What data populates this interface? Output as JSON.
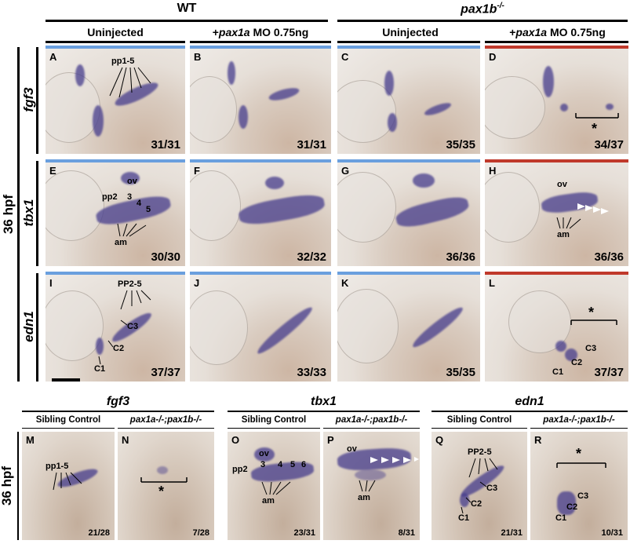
{
  "headers": {
    "wt": "WT",
    "pax1b": "pax1b",
    "pax1b_sup": "-/-",
    "uninjected_1": "Uninjected",
    "injected_1": "+pax1a MO 0.75ng",
    "uninjected_2": "Uninjected",
    "injected_2": "+pax1a MO 0.75ng",
    "injected_prefix": "+",
    "injected_gene": "pax1a",
    "injected_dose": " MO 0.75ng"
  },
  "row_labels": {
    "r1": "fgf3",
    "r2": "tbx1",
    "r3": "edn1",
    "hpf_top": "36 hpf",
    "hpf_bottom": "36 hpf"
  },
  "bottom_headers": {
    "g1": "fgf3",
    "g2": "tbx1",
    "g3": "edn1",
    "sibling": "Sibling Control",
    "double_mutant": "pax1a-/-;pax1b-/-"
  },
  "panels": [
    {
      "letter": "A",
      "count": "31/31",
      "bar": "blue"
    },
    {
      "letter": "B",
      "count": "31/31",
      "bar": "blue"
    },
    {
      "letter": "C",
      "count": "35/35",
      "bar": "blue"
    },
    {
      "letter": "D",
      "count": "34/37",
      "bar": "red"
    },
    {
      "letter": "E",
      "count": "30/30",
      "bar": "blue"
    },
    {
      "letter": "F",
      "count": "32/32",
      "bar": "blue"
    },
    {
      "letter": "G",
      "count": "36/36",
      "bar": "blue"
    },
    {
      "letter": "H",
      "count": "36/36",
      "bar": "red"
    },
    {
      "letter": "I",
      "count": "37/37",
      "bar": "blue"
    },
    {
      "letter": "J",
      "count": "33/33",
      "bar": "blue"
    },
    {
      "letter": "K",
      "count": "35/35",
      "bar": "blue"
    },
    {
      "letter": "L",
      "count": "37/37",
      "bar": "red"
    },
    {
      "letter": "M",
      "count": "21/28"
    },
    {
      "letter": "N",
      "count": "7/28"
    },
    {
      "letter": "O",
      "count": "23/31"
    },
    {
      "letter": "P",
      "count": "8/31"
    },
    {
      "letter": "Q",
      "count": "21/31"
    },
    {
      "letter": "R",
      "count": "10/31"
    }
  ],
  "annotations": {
    "pp1_5": "pp1-5",
    "ov": "ov",
    "pp2": "pp2",
    "n3": "3",
    "n4": "4",
    "n5": "5",
    "n6": "6",
    "am": "am",
    "PP2_5": "PP2-5",
    "C1": "C1",
    "C2": "C2",
    "C3": "C3",
    "star": "*"
  },
  "colors": {
    "blue_bar": "#6a9fde",
    "red_bar": "#c0392b",
    "stain": "#463c8c"
  }
}
